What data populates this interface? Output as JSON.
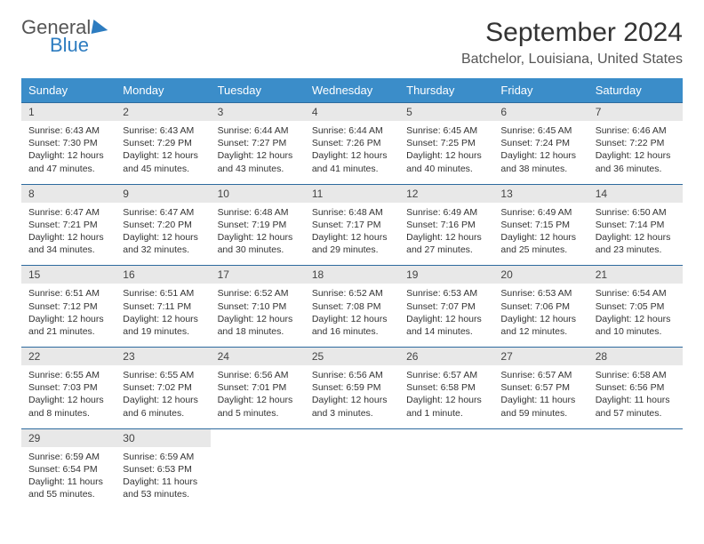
{
  "logo": {
    "text1": "General",
    "text2": "Blue"
  },
  "title": "September 2024",
  "location": "Batchelor, Louisiana, United States",
  "colors": {
    "header_bg": "#3b8dc9",
    "header_text": "#ffffff",
    "row_border": "#2d6a9e",
    "daynum_bg": "#e8e8e8",
    "logo_blue": "#2d7cc0",
    "logo_gray": "#555555"
  },
  "daysOfWeek": [
    "Sunday",
    "Monday",
    "Tuesday",
    "Wednesday",
    "Thursday",
    "Friday",
    "Saturday"
  ],
  "days": [
    {
      "n": "1",
      "sunrise": "6:43 AM",
      "sunset": "7:30 PM",
      "dl1": "Daylight: 12 hours",
      "dl2": "and 47 minutes."
    },
    {
      "n": "2",
      "sunrise": "6:43 AM",
      "sunset": "7:29 PM",
      "dl1": "Daylight: 12 hours",
      "dl2": "and 45 minutes."
    },
    {
      "n": "3",
      "sunrise": "6:44 AM",
      "sunset": "7:27 PM",
      "dl1": "Daylight: 12 hours",
      "dl2": "and 43 minutes."
    },
    {
      "n": "4",
      "sunrise": "6:44 AM",
      "sunset": "7:26 PM",
      "dl1": "Daylight: 12 hours",
      "dl2": "and 41 minutes."
    },
    {
      "n": "5",
      "sunrise": "6:45 AM",
      "sunset": "7:25 PM",
      "dl1": "Daylight: 12 hours",
      "dl2": "and 40 minutes."
    },
    {
      "n": "6",
      "sunrise": "6:45 AM",
      "sunset": "7:24 PM",
      "dl1": "Daylight: 12 hours",
      "dl2": "and 38 minutes."
    },
    {
      "n": "7",
      "sunrise": "6:46 AM",
      "sunset": "7:22 PM",
      "dl1": "Daylight: 12 hours",
      "dl2": "and 36 minutes."
    },
    {
      "n": "8",
      "sunrise": "6:47 AM",
      "sunset": "7:21 PM",
      "dl1": "Daylight: 12 hours",
      "dl2": "and 34 minutes."
    },
    {
      "n": "9",
      "sunrise": "6:47 AM",
      "sunset": "7:20 PM",
      "dl1": "Daylight: 12 hours",
      "dl2": "and 32 minutes."
    },
    {
      "n": "10",
      "sunrise": "6:48 AM",
      "sunset": "7:19 PM",
      "dl1": "Daylight: 12 hours",
      "dl2": "and 30 minutes."
    },
    {
      "n": "11",
      "sunrise": "6:48 AM",
      "sunset": "7:17 PM",
      "dl1": "Daylight: 12 hours",
      "dl2": "and 29 minutes."
    },
    {
      "n": "12",
      "sunrise": "6:49 AM",
      "sunset": "7:16 PM",
      "dl1": "Daylight: 12 hours",
      "dl2": "and 27 minutes."
    },
    {
      "n": "13",
      "sunrise": "6:49 AM",
      "sunset": "7:15 PM",
      "dl1": "Daylight: 12 hours",
      "dl2": "and 25 minutes."
    },
    {
      "n": "14",
      "sunrise": "6:50 AM",
      "sunset": "7:14 PM",
      "dl1": "Daylight: 12 hours",
      "dl2": "and 23 minutes."
    },
    {
      "n": "15",
      "sunrise": "6:51 AM",
      "sunset": "7:12 PM",
      "dl1": "Daylight: 12 hours",
      "dl2": "and 21 minutes."
    },
    {
      "n": "16",
      "sunrise": "6:51 AM",
      "sunset": "7:11 PM",
      "dl1": "Daylight: 12 hours",
      "dl2": "and 19 minutes."
    },
    {
      "n": "17",
      "sunrise": "6:52 AM",
      "sunset": "7:10 PM",
      "dl1": "Daylight: 12 hours",
      "dl2": "and 18 minutes."
    },
    {
      "n": "18",
      "sunrise": "6:52 AM",
      "sunset": "7:08 PM",
      "dl1": "Daylight: 12 hours",
      "dl2": "and 16 minutes."
    },
    {
      "n": "19",
      "sunrise": "6:53 AM",
      "sunset": "7:07 PM",
      "dl1": "Daylight: 12 hours",
      "dl2": "and 14 minutes."
    },
    {
      "n": "20",
      "sunrise": "6:53 AM",
      "sunset": "7:06 PM",
      "dl1": "Daylight: 12 hours",
      "dl2": "and 12 minutes."
    },
    {
      "n": "21",
      "sunrise": "6:54 AM",
      "sunset": "7:05 PM",
      "dl1": "Daylight: 12 hours",
      "dl2": "and 10 minutes."
    },
    {
      "n": "22",
      "sunrise": "6:55 AM",
      "sunset": "7:03 PM",
      "dl1": "Daylight: 12 hours",
      "dl2": "and 8 minutes."
    },
    {
      "n": "23",
      "sunrise": "6:55 AM",
      "sunset": "7:02 PM",
      "dl1": "Daylight: 12 hours",
      "dl2": "and 6 minutes."
    },
    {
      "n": "24",
      "sunrise": "6:56 AM",
      "sunset": "7:01 PM",
      "dl1": "Daylight: 12 hours",
      "dl2": "and 5 minutes."
    },
    {
      "n": "25",
      "sunrise": "6:56 AM",
      "sunset": "6:59 PM",
      "dl1": "Daylight: 12 hours",
      "dl2": "and 3 minutes."
    },
    {
      "n": "26",
      "sunrise": "6:57 AM",
      "sunset": "6:58 PM",
      "dl1": "Daylight: 12 hours",
      "dl2": "and 1 minute."
    },
    {
      "n": "27",
      "sunrise": "6:57 AM",
      "sunset": "6:57 PM",
      "dl1": "Daylight: 11 hours",
      "dl2": "and 59 minutes."
    },
    {
      "n": "28",
      "sunrise": "6:58 AM",
      "sunset": "6:56 PM",
      "dl1": "Daylight: 11 hours",
      "dl2": "and 57 minutes."
    },
    {
      "n": "29",
      "sunrise": "6:59 AM",
      "sunset": "6:54 PM",
      "dl1": "Daylight: 11 hours",
      "dl2": "and 55 minutes."
    },
    {
      "n": "30",
      "sunrise": "6:59 AM",
      "sunset": "6:53 PM",
      "dl1": "Daylight: 11 hours",
      "dl2": "and 53 minutes."
    }
  ],
  "labels": {
    "sunrise": "Sunrise:",
    "sunset": "Sunset:"
  }
}
